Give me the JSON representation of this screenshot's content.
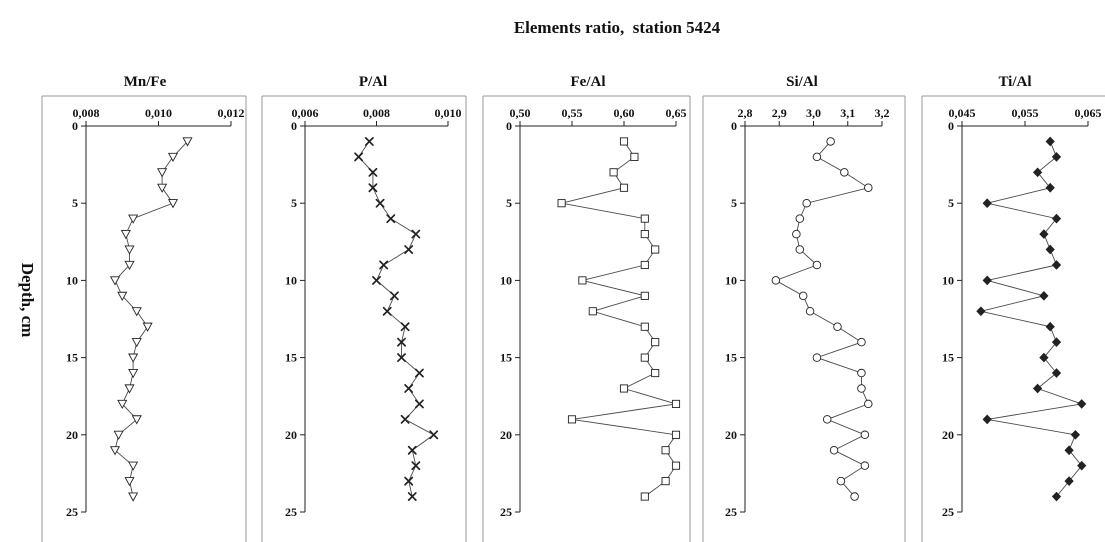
{
  "figure": {
    "title": "Elements ratio,  station 5424",
    "ylabel": "Depth, cm"
  },
  "style": {
    "frame_color": "#9a9a9a",
    "axis_color": "#222222",
    "line_color": "#4a4a4a",
    "marker_edge_color": "#222222",
    "marker_fill_color": "#ffffff"
  },
  "chart_data": [
    {
      "type": "line",
      "title": "Mn/Fe",
      "x_axis_position": "top",
      "y_inverted": true,
      "grid": false,
      "xlim": [
        0.008,
        0.012
      ],
      "ylim": [
        0,
        25
      ],
      "xticks": [
        0.008,
        0.01,
        0.012
      ],
      "xtick_labels": [
        "0,008",
        "0,010",
        "0,012"
      ],
      "yticks": [
        0,
        5,
        10,
        15,
        20,
        25
      ],
      "ytick_labels": [
        "0",
        "5",
        "10",
        "15",
        "20",
        "25"
      ],
      "marker": "triangle-down-open",
      "series": [
        {
          "y": [
            1,
            2,
            3,
            4,
            5,
            6,
            7,
            8,
            9,
            10,
            11,
            12,
            13,
            14,
            15,
            16,
            17,
            18,
            19,
            20,
            21,
            22,
            23,
            24
          ],
          "x": [
            0.0108,
            0.0104,
            0.0101,
            0.0101,
            0.0104,
            0.0093,
            0.0091,
            0.0092,
            0.0092,
            0.0088,
            0.009,
            0.0094,
            0.0097,
            0.0094,
            0.0093,
            0.0093,
            0.0092,
            0.009,
            0.0094,
            0.0089,
            0.0088,
            0.0093,
            0.0092,
            0.0093
          ]
        }
      ]
    },
    {
      "type": "line",
      "title": "P/Al",
      "x_axis_position": "top",
      "y_inverted": true,
      "grid": false,
      "xlim": [
        0.006,
        0.01
      ],
      "ylim": [
        0,
        25
      ],
      "xticks": [
        0.006,
        0.008,
        0.01
      ],
      "xtick_labels": [
        "0,006",
        "0,008",
        "0,010"
      ],
      "yticks": [
        0,
        5,
        10,
        15,
        20,
        25
      ],
      "ytick_labels": [
        "0",
        "5",
        "10",
        "15",
        "20",
        "25"
      ],
      "marker": "cross",
      "series": [
        {
          "y": [
            1,
            2,
            3,
            4,
            5,
            6,
            7,
            8,
            9,
            10,
            11,
            12,
            13,
            14,
            15,
            16,
            17,
            18,
            19,
            20,
            21,
            22,
            23,
            24
          ],
          "x": [
            0.0078,
            0.0075,
            0.0079,
            0.0079,
            0.0081,
            0.0084,
            0.0091,
            0.0089,
            0.0082,
            0.008,
            0.0085,
            0.0083,
            0.0088,
            0.0087,
            0.0087,
            0.0092,
            0.0089,
            0.0092,
            0.0088,
            0.0096,
            0.009,
            0.0091,
            0.0089,
            0.009
          ]
        }
      ]
    },
    {
      "type": "line",
      "title": "Fe/Al",
      "x_axis_position": "top",
      "y_inverted": true,
      "grid": false,
      "xlim": [
        0.5,
        0.65
      ],
      "ylim": [
        0,
        25
      ],
      "xticks": [
        0.5,
        0.55,
        0.6,
        0.65
      ],
      "xtick_labels": [
        "0,50",
        "0,55",
        "0,60",
        "0,65"
      ],
      "yticks": [
        0,
        5,
        10,
        15,
        20,
        25
      ],
      "ytick_labels": [
        "0",
        "5",
        "10",
        "15",
        "20",
        "25"
      ],
      "marker": "square-open",
      "series": [
        {
          "y": [
            1,
            2,
            3,
            4,
            5,
            6,
            7,
            8,
            9,
            10,
            11,
            12,
            13,
            14,
            15,
            16,
            17,
            18,
            19,
            20,
            21,
            22,
            23,
            24
          ],
          "x": [
            0.6,
            0.61,
            0.59,
            0.6,
            0.54,
            0.62,
            0.62,
            0.63,
            0.62,
            0.56,
            0.62,
            0.57,
            0.62,
            0.63,
            0.62,
            0.63,
            0.6,
            0.65,
            0.55,
            0.65,
            0.64,
            0.65,
            0.64,
            0.62
          ]
        }
      ]
    },
    {
      "type": "line",
      "title": "Si/Al",
      "x_axis_position": "top",
      "y_inverted": true,
      "grid": false,
      "xlim": [
        2.8,
        3.2
      ],
      "ylim": [
        0,
        25
      ],
      "xticks": [
        2.8,
        2.9,
        3.0,
        3.1,
        3.2
      ],
      "xtick_labels": [
        "2,8",
        "2,9",
        "3,0",
        "3,1",
        "3,2"
      ],
      "yticks": [
        0,
        5,
        10,
        15,
        20,
        25
      ],
      "ytick_labels": [
        "0",
        "5",
        "10",
        "15",
        "20",
        "25"
      ],
      "marker": "circle-open",
      "series": [
        {
          "y": [
            1,
            2,
            3,
            4,
            5,
            6,
            7,
            8,
            9,
            10,
            11,
            12,
            13,
            14,
            15,
            16,
            17,
            18,
            19,
            20,
            21,
            22,
            23,
            24
          ],
          "x": [
            3.05,
            3.01,
            3.09,
            3.16,
            2.98,
            2.96,
            2.95,
            2.96,
            3.01,
            2.89,
            2.97,
            2.99,
            3.07,
            3.14,
            3.01,
            3.14,
            3.14,
            3.16,
            3.04,
            3.15,
            3.06,
            3.15,
            3.08,
            3.12
          ]
        }
      ]
    },
    {
      "type": "line",
      "title": "Ti/Al",
      "x_axis_position": "top",
      "y_inverted": true,
      "grid": false,
      "xlim": [
        0.045,
        0.065
      ],
      "ylim": [
        0,
        25
      ],
      "xticks": [
        0.045,
        0.055,
        0.065
      ],
      "xtick_labels": [
        "0,045",
        "0,055",
        "0,065"
      ],
      "yticks": [
        0,
        5,
        10,
        15,
        20,
        25
      ],
      "ytick_labels": [
        "0",
        "5",
        "10",
        "15",
        "20",
        "25"
      ],
      "marker": "diamond-filled",
      "series": [
        {
          "y": [
            1,
            2,
            3,
            4,
            5,
            6,
            7,
            8,
            9,
            10,
            11,
            12,
            13,
            14,
            15,
            16,
            17,
            18,
            19,
            20,
            21,
            22,
            23,
            24
          ],
          "x": [
            0.059,
            0.06,
            0.057,
            0.059,
            0.049,
            0.06,
            0.058,
            0.059,
            0.06,
            0.049,
            0.058,
            0.048,
            0.059,
            0.06,
            0.058,
            0.06,
            0.057,
            0.064,
            0.049,
            0.063,
            0.062,
            0.064,
            0.062,
            0.06
          ]
        }
      ]
    }
  ]
}
